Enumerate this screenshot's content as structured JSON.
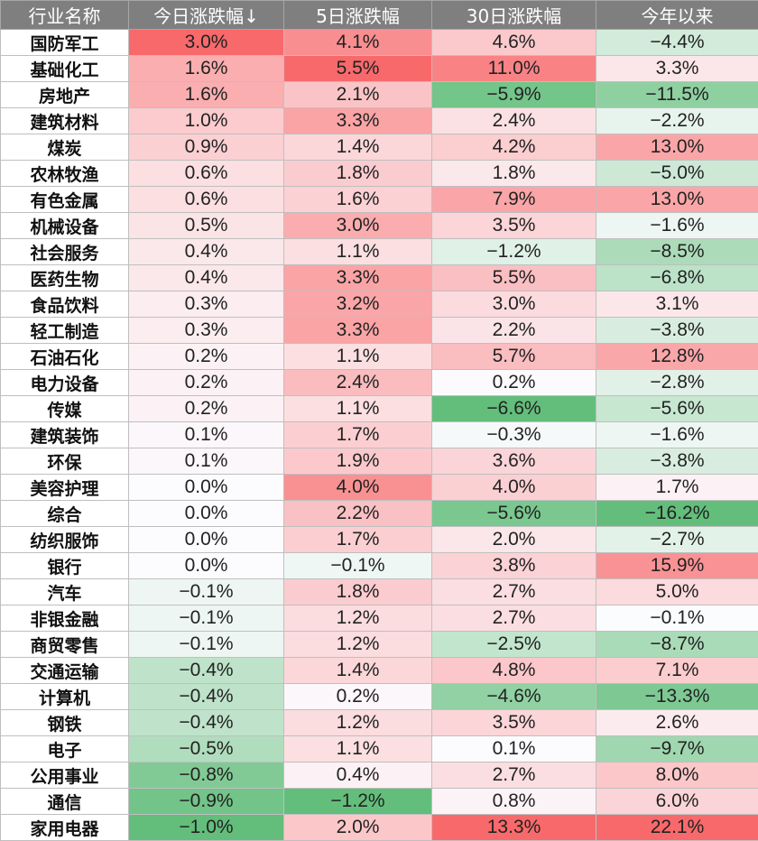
{
  "table": {
    "headers": [
      "行业名称",
      "今日涨跌幅↓",
      "5日涨跌幅",
      "30日涨跌幅",
      "今年以来"
    ],
    "rows": [
      [
        "国防军工",
        "3.0%",
        "4.1%",
        "4.6%",
        "−4.4%"
      ],
      [
        "基础化工",
        "1.6%",
        "5.5%",
        "11.0%",
        "3.3%"
      ],
      [
        "房地产",
        "1.6%",
        "2.1%",
        "−5.9%",
        "−11.5%"
      ],
      [
        "建筑材料",
        "1.0%",
        "3.3%",
        "2.4%",
        "−2.2%"
      ],
      [
        "煤炭",
        "0.9%",
        "1.4%",
        "4.2%",
        "13.0%"
      ],
      [
        "农林牧渔",
        "0.6%",
        "1.8%",
        "1.8%",
        "−5.0%"
      ],
      [
        "有色金属",
        "0.6%",
        "1.6%",
        "7.9%",
        "13.0%"
      ],
      [
        "机械设备",
        "0.5%",
        "3.0%",
        "3.5%",
        "−1.6%"
      ],
      [
        "社会服务",
        "0.4%",
        "1.1%",
        "−1.2%",
        "−8.5%"
      ],
      [
        "医药生物",
        "0.4%",
        "3.3%",
        "5.5%",
        "−6.8%"
      ],
      [
        "食品饮料",
        "0.3%",
        "3.2%",
        "3.0%",
        "3.1%"
      ],
      [
        "轻工制造",
        "0.3%",
        "3.3%",
        "2.2%",
        "−3.8%"
      ],
      [
        "石油石化",
        "0.2%",
        "1.1%",
        "5.7%",
        "12.8%"
      ],
      [
        "电力设备",
        "0.2%",
        "2.4%",
        "0.2%",
        "−2.8%"
      ],
      [
        "传媒",
        "0.2%",
        "1.1%",
        "−6.6%",
        "−5.6%"
      ],
      [
        "建筑装饰",
        "0.1%",
        "1.7%",
        "−0.3%",
        "−1.6%"
      ],
      [
        "环保",
        "0.1%",
        "1.9%",
        "3.6%",
        "−3.8%"
      ],
      [
        "美容护理",
        "0.0%",
        "4.0%",
        "4.0%",
        "1.7%"
      ],
      [
        "综合",
        "0.0%",
        "2.2%",
        "−5.6%",
        "−16.2%"
      ],
      [
        "纺织服饰",
        "0.0%",
        "1.7%",
        "2.0%",
        "−2.7%"
      ],
      [
        "银行",
        "0.0%",
        "−0.1%",
        "3.8%",
        "15.9%"
      ],
      [
        "汽车",
        "−0.1%",
        "1.8%",
        "2.7%",
        "5.0%"
      ],
      [
        "非银金融",
        "−0.1%",
        "1.2%",
        "2.7%",
        "−0.1%"
      ],
      [
        "商贸零售",
        "−0.1%",
        "1.2%",
        "−2.5%",
        "−8.7%"
      ],
      [
        "交通运输",
        "−0.4%",
        "1.4%",
        "4.8%",
        "7.1%"
      ],
      [
        "计算机",
        "−0.4%",
        "0.2%",
        "−4.6%",
        "−13.3%"
      ],
      [
        "钢铁",
        "−0.4%",
        "1.2%",
        "3.5%",
        "2.6%"
      ],
      [
        "电子",
        "−0.5%",
        "1.1%",
        "0.1%",
        "−9.7%"
      ],
      [
        "公用事业",
        "−0.8%",
        "0.4%",
        "2.7%",
        "8.0%"
      ],
      [
        "通信",
        "−0.9%",
        "−1.2%",
        "0.8%",
        "6.0%"
      ],
      [
        "家用电器",
        "−1.0%",
        "2.0%",
        "13.3%",
        "22.1%"
      ]
    ]
  },
  "chart_data": {
    "type": "table",
    "columns": [
      "行业名称",
      "今日涨跌幅",
      "5日涨跌幅",
      "30日涨跌幅",
      "今年以来"
    ],
    "sort": {
      "column": "今日涨跌幅",
      "order": "descending"
    },
    "color_scale": {
      "positive": "#f8696b",
      "neutral": "#fcfcff",
      "negative": "#63be7b"
    },
    "series": [
      {
        "name": "今日涨跌幅",
        "values": [
          3.0,
          1.6,
          1.6,
          1.0,
          0.9,
          0.6,
          0.6,
          0.5,
          0.4,
          0.4,
          0.3,
          0.3,
          0.2,
          0.2,
          0.2,
          0.1,
          0.1,
          0.0,
          0.0,
          0.0,
          0.0,
          -0.1,
          -0.1,
          -0.1,
          -0.4,
          -0.4,
          -0.4,
          -0.5,
          -0.8,
          -0.9,
          -1.0
        ]
      },
      {
        "name": "5日涨跌幅",
        "values": [
          4.1,
          5.5,
          2.1,
          3.3,
          1.4,
          1.8,
          1.6,
          3.0,
          1.1,
          3.3,
          3.2,
          3.3,
          1.1,
          2.4,
          1.1,
          1.7,
          1.9,
          4.0,
          2.2,
          1.7,
          -0.1,
          1.8,
          1.2,
          1.2,
          1.4,
          0.2,
          1.2,
          1.1,
          0.4,
          -1.2,
          2.0
        ]
      },
      {
        "name": "30日涨跌幅",
        "values": [
          4.6,
          11.0,
          -5.9,
          2.4,
          4.2,
          1.8,
          7.9,
          3.5,
          -1.2,
          5.5,
          3.0,
          2.2,
          5.7,
          0.2,
          -6.6,
          -0.3,
          3.6,
          4.0,
          -5.6,
          2.0,
          3.8,
          2.7,
          2.7,
          -2.5,
          4.8,
          -4.6,
          3.5,
          0.1,
          2.7,
          0.8,
          13.3
        ]
      },
      {
        "name": "今年以来",
        "values": [
          -4.4,
          3.3,
          -11.5,
          -2.2,
          13.0,
          -5.0,
          13.0,
          -1.6,
          -8.5,
          -6.8,
          3.1,
          -3.8,
          12.8,
          -2.8,
          -5.6,
          -1.6,
          -3.8,
          1.7,
          -16.2,
          -2.7,
          15.9,
          5.0,
          -0.1,
          -8.7,
          7.1,
          -13.3,
          2.6,
          -9.7,
          8.0,
          6.0,
          22.1
        ]
      }
    ]
  }
}
